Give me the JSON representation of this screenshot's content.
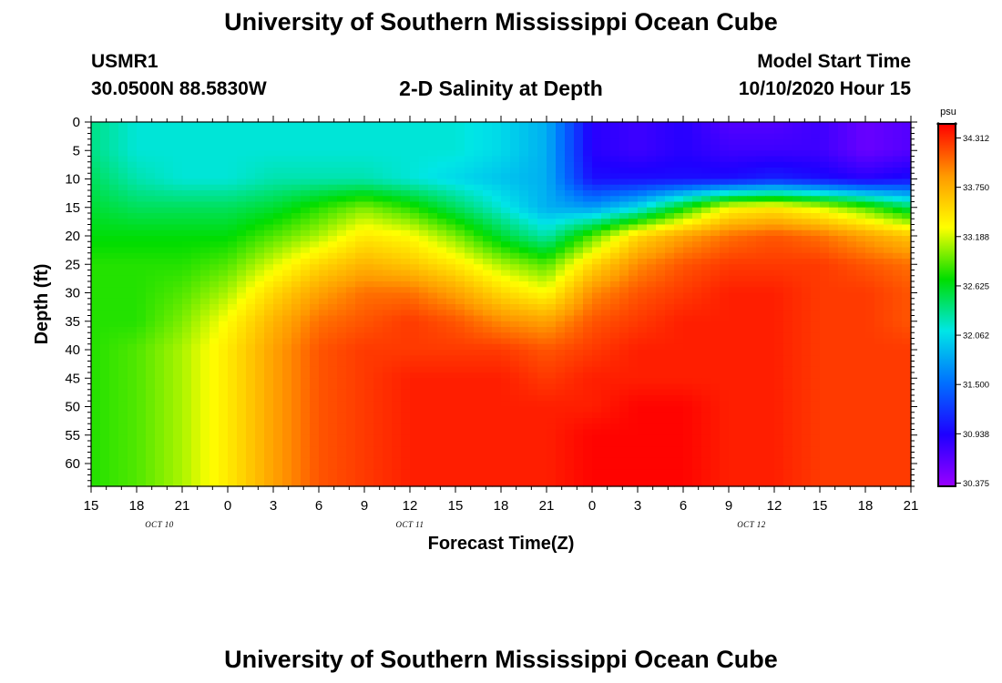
{
  "header": {
    "title_top": "University of Southern Mississippi Ocean Cube",
    "station": "USMR1",
    "coords": "30.0500N 88.5830W",
    "subtitle": "2-D Salinity at Depth",
    "model_start_label": "Model Start Time",
    "model_start_value": "10/10/2020 Hour 15",
    "title_bottom": "University of Southern Mississippi Ocean Cube"
  },
  "chart_data": {
    "type": "heatmap",
    "title": "2-D Salinity at Depth",
    "xlabel": "Forecast Time(Z)",
    "ylabel": "Depth (ft)",
    "x_tick_labels": [
      "15",
      "18",
      "21",
      "0",
      "3",
      "6",
      "9",
      "12",
      "15",
      "18",
      "21",
      "0",
      "3",
      "6",
      "9",
      "12",
      "15",
      "18",
      "21"
    ],
    "x_range_hours": [
      0,
      54
    ],
    "date_labels": [
      {
        "text": "OCT 10",
        "hour": 4.5
      },
      {
        "text": "OCT 11",
        "hour": 21
      },
      {
        "text": "OCT 12",
        "hour": 43.5
      }
    ],
    "y_tick_labels": [
      "0",
      "5",
      "10",
      "15",
      "20",
      "25",
      "30",
      "35",
      "40",
      "45",
      "50",
      "55",
      "60"
    ],
    "ylim": [
      0,
      64
    ],
    "y_inverted": true,
    "colorbar": {
      "unit": "psu",
      "range": [
        30.375,
        34.312
      ],
      "ticks": [
        "34.312",
        "33.750",
        "33.188",
        "32.625",
        "32.062",
        "31.500",
        "30.938",
        "30.375"
      ]
    },
    "salinity_psu": {
      "note": "approximate estimate sampled every 3 h (columns) and every 5 ft (rows, depth 0..60); values in psu",
      "hours": [
        0,
        3,
        6,
        9,
        12,
        15,
        18,
        21,
        24,
        27,
        30,
        33,
        36,
        39,
        42,
        45,
        48,
        51,
        54
      ],
      "depths": [
        0,
        5,
        10,
        15,
        20,
        25,
        30,
        35,
        40,
        45,
        50,
        55,
        60
      ],
      "values": [
        [
          32.3,
          32.1,
          32.1,
          32.1,
          32.1,
          32.1,
          32.1,
          32.1,
          32.1,
          32.0,
          31.8,
          30.9,
          30.8,
          30.9,
          30.7,
          30.7,
          30.8,
          30.6,
          30.7
        ],
        [
          32.3,
          32.1,
          32.1,
          32.1,
          32.1,
          32.1,
          32.1,
          32.1,
          32.1,
          32.0,
          31.8,
          30.9,
          30.8,
          30.9,
          30.8,
          30.8,
          30.8,
          30.6,
          30.7
        ],
        [
          32.4,
          32.2,
          32.1,
          32.1,
          32.2,
          32.2,
          32.2,
          32.1,
          32.0,
          31.9,
          31.8,
          31.0,
          31.0,
          31.0,
          31.0,
          31.1,
          31.0,
          30.9,
          31.0
        ],
        [
          32.5,
          32.4,
          32.4,
          32.4,
          32.5,
          32.7,
          32.9,
          32.7,
          32.4,
          32.1,
          31.8,
          31.7,
          32.0,
          32.6,
          33.2,
          33.3,
          33.1,
          32.8,
          32.4
        ],
        [
          32.6,
          32.6,
          32.6,
          32.6,
          32.8,
          33.0,
          33.3,
          33.2,
          32.9,
          32.5,
          32.2,
          32.8,
          33.4,
          33.7,
          33.9,
          34.0,
          33.9,
          33.7,
          33.5
        ],
        [
          32.7,
          32.7,
          32.7,
          32.8,
          33.1,
          33.4,
          33.6,
          33.5,
          33.3,
          33.0,
          32.8,
          33.4,
          33.8,
          34.0,
          34.1,
          34.1,
          34.1,
          34.0,
          33.9
        ],
        [
          32.7,
          32.7,
          32.8,
          33.0,
          33.4,
          33.7,
          33.9,
          33.9,
          33.7,
          33.4,
          33.2,
          33.8,
          34.0,
          34.1,
          34.2,
          34.2,
          34.1,
          34.1,
          34.0
        ],
        [
          32.7,
          32.7,
          32.9,
          33.2,
          33.6,
          33.9,
          34.0,
          34.1,
          34.0,
          33.8,
          33.7,
          34.0,
          34.1,
          34.2,
          34.2,
          34.2,
          34.1,
          34.1,
          34.0
        ],
        [
          32.7,
          32.8,
          33.0,
          33.3,
          33.7,
          34.0,
          34.1,
          34.1,
          34.1,
          34.1,
          34.0,
          34.1,
          34.2,
          34.2,
          34.2,
          34.2,
          34.1,
          34.1,
          34.1
        ],
        [
          32.7,
          32.8,
          33.0,
          33.3,
          33.7,
          34.0,
          34.1,
          34.2,
          34.2,
          34.2,
          34.1,
          34.2,
          34.2,
          34.2,
          34.2,
          34.2,
          34.1,
          34.1,
          34.1
        ],
        [
          32.7,
          32.8,
          33.0,
          33.3,
          33.7,
          34.0,
          34.1,
          34.2,
          34.2,
          34.2,
          34.2,
          34.2,
          34.3,
          34.3,
          34.2,
          34.2,
          34.1,
          34.1,
          34.1
        ],
        [
          32.7,
          32.8,
          33.0,
          33.3,
          33.7,
          34.0,
          34.1,
          34.2,
          34.2,
          34.2,
          34.2,
          34.3,
          34.3,
          34.3,
          34.2,
          34.2,
          34.1,
          34.1,
          34.1
        ],
        [
          32.7,
          32.8,
          33.0,
          33.3,
          33.7,
          34.0,
          34.1,
          34.2,
          34.2,
          34.2,
          34.2,
          34.3,
          34.3,
          34.3,
          34.2,
          34.2,
          34.1,
          34.1,
          34.1
        ]
      ]
    }
  },
  "colors": {
    "background": "#ffffff",
    "frame": "#000000"
  }
}
